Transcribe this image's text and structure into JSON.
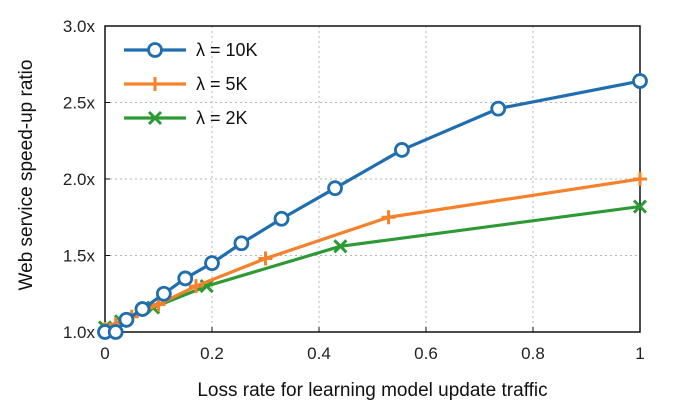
{
  "chart_data": {
    "type": "line",
    "title": "",
    "xlabel": "Loss rate for learning model update traffic",
    "ylabel": "Web service speed-up ratio",
    "xlim": [
      0,
      1
    ],
    "ylim": [
      1.0,
      3.0
    ],
    "x_ticks": [
      0,
      0.2,
      0.4,
      0.6,
      0.8,
      1
    ],
    "x_tick_labels": [
      "0",
      "0.2",
      "0.4",
      "0.6",
      "0.8",
      "1"
    ],
    "y_ticks": [
      1.0,
      1.5,
      2.0,
      2.5,
      3.0
    ],
    "y_tick_labels": [
      "1.0x",
      "1.5x",
      "2.0x",
      "2.5x",
      "3.0x"
    ],
    "grid": true,
    "legend_position": "top-left",
    "series": [
      {
        "name": "λ = 10K",
        "color": "#1f6eb0",
        "marker": "circle",
        "points": [
          [
            0,
            1.0
          ],
          [
            0.02,
            1.0
          ],
          [
            0.04,
            1.08
          ],
          [
            0.07,
            1.15
          ],
          [
            0.11,
            1.25
          ],
          [
            0.15,
            1.35
          ],
          [
            0.2,
            1.45
          ],
          [
            0.255,
            1.58
          ],
          [
            0.33,
            1.74
          ],
          [
            0.43,
            1.94
          ],
          [
            0.555,
            2.19
          ],
          [
            0.735,
            2.46
          ],
          [
            1.0,
            2.64
          ]
        ]
      },
      {
        "name": "λ = 5K",
        "color": "#f5822a",
        "marker": "plus",
        "points": [
          [
            0,
            1.02
          ],
          [
            0.02,
            1.05
          ],
          [
            0.05,
            1.1
          ],
          [
            0.1,
            1.18
          ],
          [
            0.17,
            1.3
          ],
          [
            0.3,
            1.48
          ],
          [
            0.53,
            1.75
          ],
          [
            1.0,
            2.0
          ]
        ]
      },
      {
        "name": "λ = 2K",
        "color": "#2e9a35",
        "marker": "x",
        "points": [
          [
            0,
            1.03
          ],
          [
            0.03,
            1.07
          ],
          [
            0.09,
            1.16
          ],
          [
            0.19,
            1.3
          ],
          [
            0.44,
            1.56
          ],
          [
            1.0,
            1.82
          ]
        ]
      }
    ]
  }
}
